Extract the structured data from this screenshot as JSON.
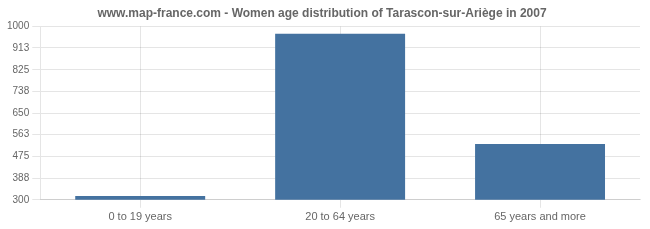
{
  "chart_data": {
    "type": "bar",
    "title": "www.map-france.com - Women age distribution of Tarascon-sur-Ariège in 2007",
    "categories": [
      "0 to 19 years",
      "20 to 64 years",
      "65 years and more"
    ],
    "values": [
      315,
      970,
      525
    ],
    "color": "#4472a0",
    "ylim": [
      300,
      1000
    ],
    "yticks": [
      300,
      388,
      475,
      563,
      650,
      738,
      825,
      913,
      1000
    ],
    "grid": true
  }
}
